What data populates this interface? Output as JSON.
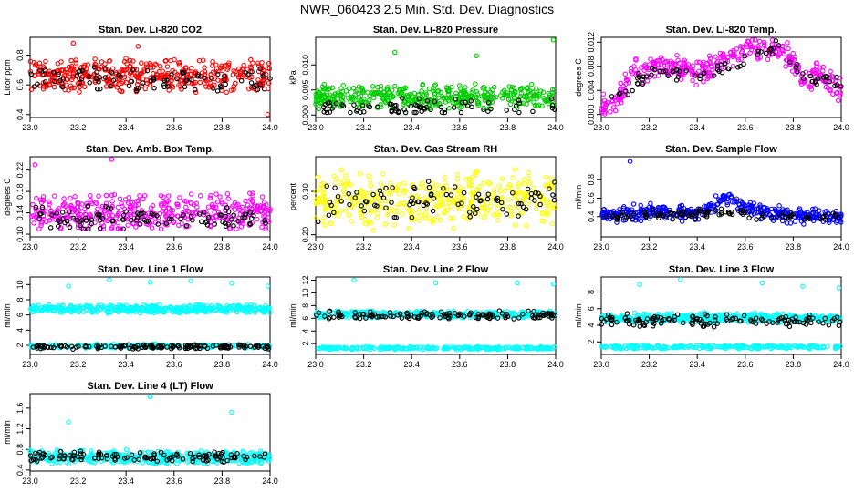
{
  "page": {
    "title": "NWR_060423  2.5 Min. Std. Dev. Diagnostics"
  },
  "colors": {
    "red": "#ff0000",
    "green": "#00cc00",
    "magenta": "#ff00ff",
    "yellow": "#ffff00",
    "blue": "#0000ff",
    "cyan": "#00ffff",
    "black": "#000000"
  },
  "chart_data": [
    {
      "type": "scatter",
      "title": "Stan. Dev. Li-820 CO2",
      "ylabel": "Licor ppm",
      "xlim": [
        23.0,
        24.0
      ],
      "ylim": [
        0.38,
        0.92
      ],
      "xticks": [
        "23.0",
        "23.2",
        "23.4",
        "23.6",
        "23.8",
        "24.0"
      ],
      "yticks": [
        "0.4",
        "0.6",
        "0.8"
      ],
      "series": [
        {
          "color": "#ff0000",
          "band": [
            0.55,
            0.8
          ],
          "center": 0.66,
          "count": 420
        },
        {
          "color": "#000000",
          "band": [
            0.55,
            0.75
          ],
          "center": 0.64,
          "count": 90
        }
      ],
      "outliers": [
        {
          "x": 23.18,
          "y": 0.88
        },
        {
          "x": 23.45,
          "y": 0.86
        },
        {
          "x": 23.99,
          "y": 0.4
        }
      ]
    },
    {
      "type": "scatter",
      "title": "Stan. Dev. Li-820 Pressure",
      "ylabel": "kPa",
      "xlim": [
        23.0,
        24.0
      ],
      "ylim": [
        -0.0005,
        0.0155
      ],
      "xticks": [
        "23.0",
        "23.2",
        "23.4",
        "23.6",
        "23.8",
        "24.0"
      ],
      "yticks": [
        "0.000",
        "0.005",
        "0.010"
      ],
      "series": [
        {
          "color": "#00cc00",
          "band": [
            0.0005,
            0.0062
          ],
          "center": 0.0035,
          "count": 420
        },
        {
          "color": "#000000",
          "band": [
            0.0005,
            0.0045
          ],
          "center": 0.0015,
          "count": 80
        }
      ],
      "outliers": [
        {
          "x": 23.33,
          "y": 0.0125
        },
        {
          "x": 23.67,
          "y": 0.0118
        },
        {
          "x": 23.99,
          "y": 0.015
        }
      ]
    },
    {
      "type": "scatter",
      "title": "Stan. Dev. Li-820 Temp.",
      "ylabel": "degrees C",
      "xlim": [
        23.0,
        24.0
      ],
      "ylim": [
        -0.0005,
        0.0128
      ],
      "xticks": [
        "23.0",
        "23.2",
        "23.4",
        "23.6",
        "23.8",
        "24.0"
      ],
      "yticks": [
        "0.000",
        "0.004",
        "0.008",
        "0.012"
      ],
      "series": [
        {
          "color": "#ff00ff",
          "trend": [
            [
              23.0,
              0.001
            ],
            [
              23.08,
              0.003
            ],
            [
              23.12,
              0.007
            ],
            [
              23.25,
              0.008
            ],
            [
              23.4,
              0.007
            ],
            [
              23.5,
              0.009
            ],
            [
              23.6,
              0.011
            ],
            [
              23.7,
              0.011
            ],
            [
              23.78,
              0.01
            ],
            [
              23.85,
              0.005
            ],
            [
              23.9,
              0.007
            ],
            [
              24.0,
              0.004
            ]
          ],
          "spread": 0.0018,
          "count": 380
        },
        {
          "color": "#000000",
          "trend": [
            [
              23.0,
              0.001
            ],
            [
              23.1,
              0.004
            ],
            [
              23.2,
              0.007
            ],
            [
              23.4,
              0.007
            ],
            [
              23.55,
              0.008
            ],
            [
              23.65,
              0.01
            ],
            [
              23.75,
              0.011
            ],
            [
              23.85,
              0.006
            ],
            [
              24.0,
              0.005
            ]
          ],
          "spread": 0.0012,
          "count": 80
        }
      ],
      "outliers": []
    },
    {
      "type": "scatter",
      "title": "Stan. Dev. Amb. Box Temp.",
      "ylabel": "degrees C",
      "xlim": [
        23.0,
        24.0
      ],
      "ylim": [
        0.095,
        0.245
      ],
      "xticks": [
        "23.0",
        "23.2",
        "23.4",
        "23.6",
        "23.8",
        "24.0"
      ],
      "yticks": [
        "0.10",
        "0.14",
        "0.18",
        "0.22"
      ],
      "series": [
        {
          "color": "#ff00ff",
          "band": [
            0.11,
            0.19
          ],
          "center": 0.14,
          "count": 420
        },
        {
          "color": "#000000",
          "band": [
            0.11,
            0.16
          ],
          "center": 0.13,
          "count": 100
        }
      ],
      "outliers": [
        {
          "x": 23.34,
          "y": 0.24
        },
        {
          "x": 23.02,
          "y": 0.23
        }
      ]
    },
    {
      "type": "scatter",
      "title": "Stan. Dev. Gas Stream RH",
      "ylabel": "percent",
      "xlim": [
        23.0,
        24.0
      ],
      "ylim": [
        0.195,
        0.38
      ],
      "xticks": [
        "23.0",
        "23.2",
        "23.4",
        "23.6",
        "23.8",
        "24.0"
      ],
      "yticks": [
        "0.20",
        "0.30"
      ],
      "series": [
        {
          "color": "#ffff00",
          "band": [
            0.21,
            0.36
          ],
          "center": 0.28,
          "count": 420
        },
        {
          "color": "#000000",
          "band": [
            0.23,
            0.34
          ],
          "center": 0.28,
          "count": 90
        }
      ],
      "outliers": []
    },
    {
      "type": "scatter",
      "title": "Stan. Dev. Sample Flow",
      "ylabel": "ml/min",
      "xlim": [
        23.0,
        24.0
      ],
      "ylim": [
        0.18,
        1.05
      ],
      "xticks": [
        "23.0",
        "23.2",
        "23.4",
        "23.6",
        "23.8",
        "24.0"
      ],
      "yticks": [
        "0.4",
        "0.6",
        "0.8"
      ],
      "series": [
        {
          "color": "#0000ff",
          "trend": [
            [
              23.0,
              0.4
            ],
            [
              23.2,
              0.45
            ],
            [
              23.35,
              0.45
            ],
            [
              23.45,
              0.48
            ],
            [
              23.52,
              0.62
            ],
            [
              23.6,
              0.5
            ],
            [
              23.75,
              0.42
            ],
            [
              24.0,
              0.4
            ]
          ],
          "spread": 0.08,
          "count": 400
        },
        {
          "color": "#000000",
          "trend": [
            [
              23.0,
              0.38
            ],
            [
              23.3,
              0.42
            ],
            [
              23.5,
              0.45
            ],
            [
              23.7,
              0.4
            ],
            [
              24.0,
              0.38
            ]
          ],
          "spread": 0.05,
          "count": 100
        }
      ],
      "outliers": [
        {
          "x": 23.12,
          "y": 1.0
        }
      ]
    },
    {
      "type": "scatter",
      "title": "Stan. Dev. Line 1 Flow",
      "ylabel": "ml/min",
      "xlim": [
        23.0,
        24.0
      ],
      "ylim": [
        0.8,
        11.0
      ],
      "xticks": [
        "23.0",
        "23.2",
        "23.4",
        "23.6",
        "23.8",
        "24.0"
      ],
      "yticks": [
        "2",
        "4",
        "6",
        "8",
        "10"
      ],
      "series": [
        {
          "color": "#00ffff",
          "band": [
            6.2,
            7.4
          ],
          "center": 6.8,
          "count": 420
        },
        {
          "color": "#00ffff",
          "band": [
            1.6,
            2.2
          ],
          "center": 1.9,
          "count": 200
        },
        {
          "color": "#000000",
          "band": [
            1.4,
            2.1
          ],
          "center": 1.8,
          "count": 150
        }
      ],
      "outliers": [
        {
          "x": 23.16,
          "y": 9.8
        },
        {
          "x": 23.33,
          "y": 10.6
        },
        {
          "x": 23.5,
          "y": 10.3
        },
        {
          "x": 23.67,
          "y": 10.5
        },
        {
          "x": 23.84,
          "y": 10.2
        },
        {
          "x": 23.99,
          "y": 9.8
        }
      ]
    },
    {
      "type": "scatter",
      "title": "Stan. Dev. Line 2 Flow",
      "ylabel": "ml/min",
      "xlim": [
        23.0,
        24.0
      ],
      "ylim": [
        0.3,
        12.5
      ],
      "xticks": [
        "23.0",
        "23.2",
        "23.4",
        "23.6",
        "23.8",
        "24.0"
      ],
      "yticks": [
        "2",
        "4",
        "6",
        "8",
        "10",
        "12"
      ],
      "series": [
        {
          "color": "#00ffff",
          "band": [
            6.0,
            7.2
          ],
          "center": 6.6,
          "count": 420
        },
        {
          "color": "#00ffff",
          "band": [
            1.0,
            1.5
          ],
          "center": 1.3,
          "count": 250
        },
        {
          "color": "#000000",
          "band": [
            5.8,
            7.2
          ],
          "center": 6.5,
          "count": 130
        }
      ],
      "outliers": [
        {
          "x": 23.16,
          "y": 12.0
        },
        {
          "x": 23.5,
          "y": 11.6
        },
        {
          "x": 23.84,
          "y": 11.6
        },
        {
          "x": 23.99,
          "y": 11.4
        }
      ]
    },
    {
      "type": "scatter",
      "title": "Stan. Dev. Line 3 Flow",
      "ylabel": "ml/min",
      "xlim": [
        23.0,
        24.0
      ],
      "ylim": [
        0.5,
        9.8
      ],
      "xticks": [
        "23.0",
        "23.2",
        "23.4",
        "23.6",
        "23.8",
        "24.0"
      ],
      "yticks": [
        "2",
        "4",
        "6",
        "8"
      ],
      "series": [
        {
          "color": "#00ffff",
          "band": [
            4.3,
            5.6
          ],
          "center": 4.9,
          "count": 420
        },
        {
          "color": "#00ffff",
          "band": [
            1.1,
            1.6
          ],
          "center": 1.4,
          "count": 250
        },
        {
          "color": "#000000",
          "band": [
            3.8,
            5.5
          ],
          "center": 4.6,
          "count": 130
        }
      ],
      "outliers": [
        {
          "x": 23.16,
          "y": 8.9
        },
        {
          "x": 23.33,
          "y": 9.5
        },
        {
          "x": 23.67,
          "y": 9.1
        },
        {
          "x": 23.84,
          "y": 8.7
        },
        {
          "x": 23.99,
          "y": 8.5
        }
      ]
    },
    {
      "type": "scatter",
      "title": "Stan. Dev. Line 4 (LT) Flow",
      "ylabel": "ml/min",
      "xlim": [
        23.0,
        24.0
      ],
      "ylim": [
        0.38,
        1.88
      ],
      "xticks": [
        "23.0",
        "23.2",
        "23.4",
        "23.6",
        "23.8",
        "24.0"
      ],
      "yticks": [
        "0.4",
        "0.8",
        "1.2",
        "1.6"
      ],
      "series": [
        {
          "color": "#00ffff",
          "band": [
            0.5,
            0.8
          ],
          "center": 0.65,
          "count": 420
        },
        {
          "color": "#000000",
          "band": [
            0.55,
            0.78
          ],
          "center": 0.66,
          "count": 120
        }
      ],
      "outliers": [
        {
          "x": 23.16,
          "y": 1.33
        },
        {
          "x": 23.5,
          "y": 1.82
        },
        {
          "x": 23.84,
          "y": 1.52
        }
      ]
    }
  ]
}
